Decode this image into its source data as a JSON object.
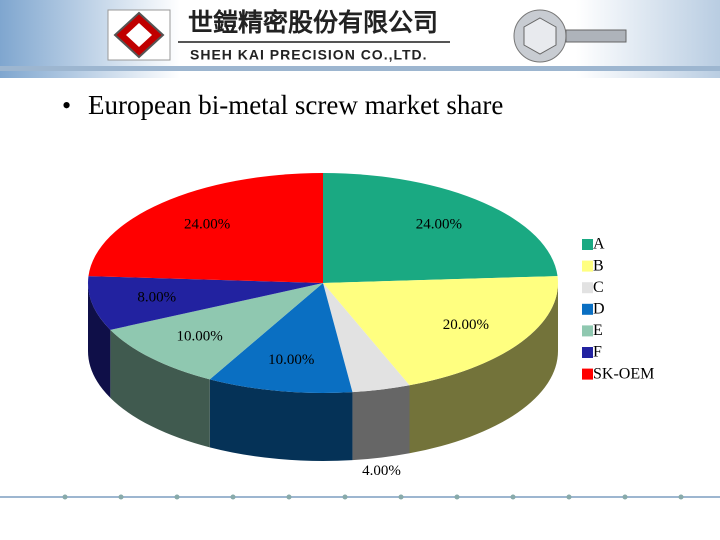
{
  "header": {
    "company_name_zh": "世鎧精密股份有限公司",
    "company_name_en": "SHEH KAI PRECISION CO.,LTD."
  },
  "chart_data": {
    "type": "pie",
    "title": "European bi-metal screw market share",
    "categories": [
      "A",
      "B",
      "C",
      "D",
      "E",
      "F",
      "SK-OEM"
    ],
    "values": [
      24,
      20,
      4,
      10,
      10,
      8,
      24
    ],
    "value_labels": [
      "24.00%",
      "20.00%",
      "4.00%",
      "10.00%",
      "10.00%",
      "8.00%",
      "24.00%"
    ],
    "colors": [
      "#1aa982",
      "#ffff80",
      "#e2e2e2",
      "#0a6fc2",
      "#8fc8b0",
      "#2222a0",
      "#ff0000"
    ]
  }
}
